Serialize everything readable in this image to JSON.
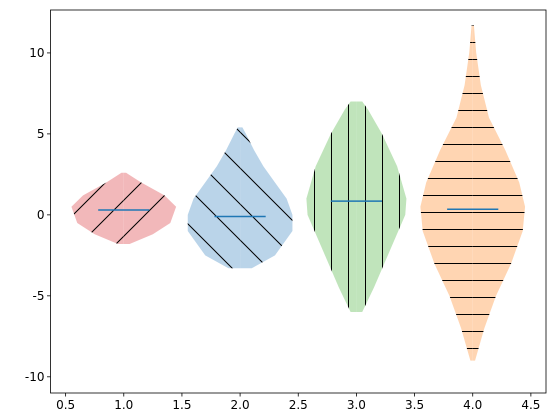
{
  "chart_data": {
    "type": "violin",
    "xlim": [
      0.37,
      4.63
    ],
    "xticks": [
      {
        "value": 0.5,
        "label": "0.5"
      },
      {
        "value": 1.0,
        "label": "1.0"
      },
      {
        "value": 1.5,
        "label": "1.5"
      },
      {
        "value": 2.0,
        "label": "2.0"
      },
      {
        "value": 2.5,
        "label": "2.5"
      },
      {
        "value": 3.0,
        "label": "3.0"
      },
      {
        "value": 3.5,
        "label": "3.5"
      },
      {
        "value": 4.0,
        "label": "4.0"
      },
      {
        "value": 4.5,
        "label": "4.5"
      }
    ],
    "ylim": [
      -11,
      12.65
    ],
    "yticks": [
      -10,
      -5,
      0,
      5,
      10
    ],
    "grid": false,
    "median_color": "#1f77b4",
    "violins": [
      {
        "position": 1,
        "color": "#f2b8ba",
        "hatch": "/",
        "median": 0.3,
        "y": [
          -1.8,
          -1.2,
          -0.5,
          0.5,
          1.2,
          2.0,
          2.6
        ],
        "half_widths": [
          0.05,
          0.25,
          0.4,
          0.45,
          0.35,
          0.15,
          0.02
        ]
      },
      {
        "position": 2,
        "color": "#bad4e9",
        "hatch": "\\",
        "median": -0.1,
        "y": [
          -3.3,
          -2.5,
          -1,
          0,
          1,
          2,
          3,
          4,
          5,
          5.4
        ],
        "half_widths": [
          0.1,
          0.3,
          0.45,
          0.45,
          0.4,
          0.3,
          0.2,
          0.12,
          0.05,
          0.02
        ]
      },
      {
        "position": 3,
        "color": "#c0e4bb",
        "hatch": "|",
        "median": 0.85,
        "y": [
          -6,
          -4.5,
          -2,
          0,
          1,
          3,
          5,
          6.5,
          7
        ],
        "half_widths": [
          0.05,
          0.15,
          0.3,
          0.42,
          0.43,
          0.35,
          0.22,
          0.1,
          0.05
        ]
      },
      {
        "position": 4,
        "color": "#ffd5b2",
        "hatch": "-",
        "median": 0.35,
        "y": [
          -9,
          -7,
          -5,
          -3,
          -1,
          0.5,
          2,
          4,
          6,
          8,
          10,
          11.7
        ],
        "half_widths": [
          0.02,
          0.1,
          0.2,
          0.33,
          0.43,
          0.45,
          0.4,
          0.28,
          0.14,
          0.07,
          0.03,
          0.01
        ]
      }
    ]
  }
}
